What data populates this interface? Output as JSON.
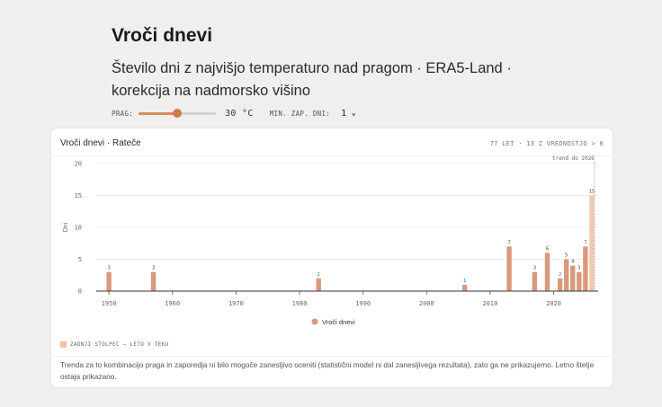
{
  "header": {
    "title": "Vroči dnevi",
    "subtitle": "Število dni z najvišjo temperaturo nad pragom · ERA5-Land · korekcija na nadmorsko višino"
  },
  "controls": {
    "threshold_label": "PRAG:",
    "threshold_value": 30,
    "threshold_min": 20,
    "threshold_max": 40,
    "threshold_display": "30 °C",
    "min_days_label": "MIN. ZAP. DNI:",
    "min_days_value": "1",
    "accent_color": "#d07a4f"
  },
  "card": {
    "title": "Vroči dnevi · Rateče",
    "meta": "77 LET · 13 Z VREDNOSTJO > 0",
    "note": "ZADNJI STOLPEC — LETO V TEKU",
    "footnote": "Trenda za to kombinacijo praga in zaporedja ni bilo mogoče zanesljivo oceniti (statistični model ni dal zanesljivega rezultata), zato ga ne prikazujemo. Letno štetje ostaja prikazano."
  },
  "chart_data": {
    "type": "bar",
    "title": "",
    "xlabel": "",
    "ylabel": "Dni",
    "xlim": [
      1948,
      2027
    ],
    "ylim": [
      0,
      20
    ],
    "x_ticks": [
      1950,
      1960,
      1970,
      1980,
      1990,
      2000,
      2010,
      2020
    ],
    "y_ticks": [
      0,
      5,
      10,
      15,
      20
    ],
    "grid": true,
    "legend_position": "bottom-center",
    "bar_color": "#d9997b",
    "current_year_color": "#efc3aa",
    "series": [
      {
        "name": "Vroči dnevi",
        "x": [
          1950,
          1957,
          1983,
          2006,
          2013,
          2017,
          2019,
          2021,
          2022,
          2023,
          2024,
          2025,
          2026
        ],
        "values": [
          3,
          3,
          2,
          1,
          7,
          3,
          6,
          2,
          5,
          4,
          3,
          7,
          15
        ]
      }
    ],
    "current_year": 2026,
    "annotation": "trend do 2026"
  }
}
